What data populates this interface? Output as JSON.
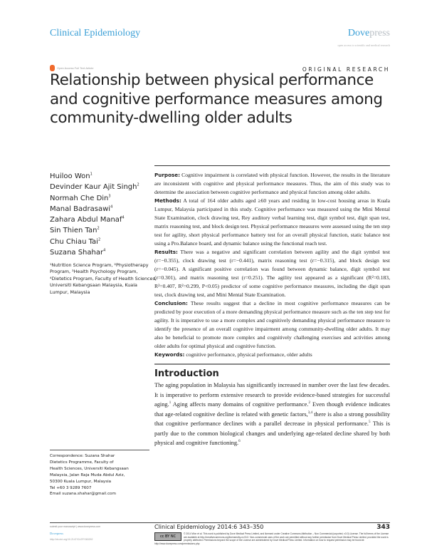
{
  "header": {
    "journal": "Clinical Epidemiology",
    "publisher_a": "Dove",
    "publisher_b": "press",
    "tagline": "open access to scientific and medical research",
    "open_access": "Open Access Full Text Article",
    "article_type": "ORIGINAL RESEARCH"
  },
  "title": "Relationship between physical performance and cognitive performance measures among community-dwelling older adults",
  "authors": [
    {
      "name": "Huiloo Won",
      "sup": "1"
    },
    {
      "name": "Devinder Kaur Ajit Singh",
      "sup": "2"
    },
    {
      "name": "Normah Che Din",
      "sup": "3"
    },
    {
      "name": "Manal Badrasawi",
      "sup": "4"
    },
    {
      "name": "Zahara Abdul Manaf",
      "sup": "4"
    },
    {
      "name": "Sin Thien Tan",
      "sup": "2"
    },
    {
      "name": "Chu Chiau Tai",
      "sup": "2"
    },
    {
      "name": "Suzana Shahar",
      "sup": "4"
    }
  ],
  "affiliations": "¹Nutrition Science Program, ²Physiotherapy Program, ³Health Psychology Program, ⁴Dietetics Program, Faculty of Health Sciences, Universiti Kebangsaan Malaysia, Kuala Lumpur, Malaysia",
  "abstract": {
    "purpose_label": "Purpose:",
    "purpose": " Cognitive impairment is correlated with physical function. However, the results in the literature are inconsistent with cognitive and physical performance measures. Thus, the aim of this study was to determine the association between cognitive performance and physical function among older adults.",
    "methods_label": "Methods:",
    "methods": " A total of 164 older adults aged ≥60 years and residing in low-cost housing areas in Kuala Lumpur, Malaysia participated in this study. Cognitive performance was measured using the Mini Mental State Examination, clock drawing test, Rey auditory verbal learning test, digit symbol test, digit span test, matrix reasoning test, and block design test. Physical performance measures were assessed using the ten step test for agility, short physical performance battery test for an overall physical function, static balance test using a Pro.Balance board, and dynamic balance using the functional reach test.",
    "results_label": "Results:",
    "results": " There was a negative and significant correlation between agility and the digit symbol test (r=−0.355), clock drawing test (r=−0.441), matrix reasoning test (r=−0.315), and block design test (r=−0.045). A significant positive correlation was found between dynamic balance, digit symbol test (r=0.301), and matrix reasoning test (r=0.251). The agility test appeared as a significant (R²=0.183, R²=0.407, R²=0.299, P<0.05) predictor of some cognitive performance measures, including the digit span test, clock drawing test, and Mini Mental State Examination.",
    "conclusion_label": "Conclusion:",
    "conclusion": " These results suggest that a decline in most cognitive performance measures can be predicted by poor execution of a more demanding physical performance measure such as the ten step test for agility. It is imperative to use a more complex and cognitively demanding physical performance measure to identify the presence of an overall cognitive impairment among community-dwelling older adults. It may also be beneficial to promote more complex and cognitively challenging exercises and activities among older adults for optimal physical and cognitive function.",
    "keywords_label": "Keywords:",
    "keywords": " cognitive performance, physical performance, older adults"
  },
  "introduction": {
    "heading": "Introduction",
    "parts": [
      "The aging population in Malaysia has significantly increased in number over the last few decades. It is imperative to perform extensive research to provide evidence-based strategies for successful aging.",
      "1",
      " Aging affects many domains of cognitive performance.",
      "2",
      " Even though evidence indicates that age-related cognitive decline is related with genetic factors,",
      "3,4",
      " there is also a strong possibility that cognitive performance declines with a parallel decrease in physical performance.",
      "5",
      " This is partly due to the common biological changes and underlying age-related decline shared by both physical and cognitive functioning.",
      "6"
    ]
  },
  "correspondence": [
    "Correspondence: Suzana Shahar",
    "Dietetics Programme, Faculty of",
    "Health Sciences, Universiti Kebangsaan",
    "Malaysia, Jalan Raja Muda Abdul Aziz,",
    "50300 Kuala Lumpur, Malaysia",
    "Tel +60 3 9289 7607",
    "Email suzana.shahar@gmail.com"
  ],
  "footer": {
    "submit": "submit your manuscript | www.dovepress.com",
    "dove": "Dovepress",
    "doi": "http://dx.doi.org/10.2147/CLEP.S63292",
    "citation": "Clinical Epidemiology 2014:6 343–350",
    "page": "343",
    "cc": "cc BY NC",
    "license": "© 2014 Won et al. This work is published by Dove Medical Press Limited, and licensed under Creative Commons Attribution – Non Commercial (unported, v3.0) License. The full terms of the License are available at http://creativecommons.org/licenses/by-nc/3.0/. Non-commercial uses of the work are permitted without any further",
    "license2": "permission from Dove Medical Press Limited, provided the work is properly attributed. Permissions beyond the scope of the License are administered by Dove Medical Press Limited. Information on how to request permission may be found at: http://www.dovepress.com/permissions.php"
  }
}
